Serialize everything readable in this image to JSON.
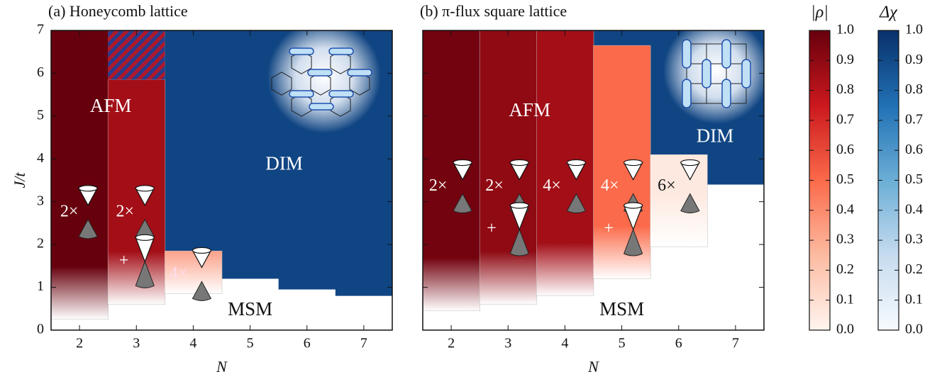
{
  "chart_data": [
    {
      "type": "phase",
      "title": "(a) Honeycomb lattice",
      "xlabel": "N",
      "ylabel": "J/t",
      "xlim": [
        1.5,
        7.5
      ],
      "ylim": [
        0,
        7
      ],
      "xticks": [
        2,
        3,
        4,
        5,
        6,
        7
      ],
      "yticks": [
        0,
        1,
        2,
        3,
        4,
        5,
        6,
        7
      ],
      "afm": {
        "N": [
          2,
          3,
          4
        ],
        "low": [
          0.25,
          0.6,
          0.85
        ],
        "high": [
          7,
          5.85,
          1.85
        ],
        "rho": [
          1.0,
          0.85,
          0.4
        ]
      },
      "dim": {
        "N": [
          4,
          5,
          6,
          7
        ],
        "low": [
          1.85,
          1.2,
          0.95,
          0.8
        ],
        "high": [
          7,
          7,
          7,
          7
        ],
        "chi": [
          0.92,
          0.92,
          0.92,
          0.92
        ]
      },
      "hatched": {
        "N": [
          3
        ],
        "low": [
          5.85
        ],
        "high": [
          7
        ]
      },
      "labels": [
        "AFM",
        "DIM",
        "MSM"
      ],
      "multiplicities": [
        "2×",
        "2×",
        "+",
        "4×"
      ]
    },
    {
      "type": "phase",
      "title": "(b) π-flux square lattice",
      "xlabel": "N",
      "xlim": [
        1.5,
        7.5
      ],
      "ylim": [
        0,
        7
      ],
      "xticks": [
        2,
        3,
        4,
        5,
        6,
        7
      ],
      "yticks": [
        0,
        1,
        2,
        3,
        4,
        5,
        6,
        7
      ],
      "afm": {
        "N": [
          2,
          3,
          4,
          5,
          6
        ],
        "low": [
          0.45,
          0.6,
          0.8,
          1.2,
          1.95
        ],
        "high": [
          7,
          7,
          7,
          6.65,
          4.1
        ],
        "rho": [
          0.97,
          0.9,
          0.85,
          0.5,
          0.05
        ]
      },
      "dim": {
        "N": [
          5,
          6,
          7
        ],
        "low": [
          6.65,
          4.1,
          3.4
        ],
        "high": [
          7,
          7,
          7
        ],
        "chi": [
          0.92,
          0.92,
          0.92
        ]
      },
      "labels": [
        "AFM",
        "DIM",
        "MSM"
      ],
      "multiplicities": [
        "2×",
        "2×",
        "4×",
        "4×",
        "6×",
        "+",
        "+"
      ]
    },
    {
      "type": "colorbar",
      "label": "|ρ|",
      "lim": [
        0,
        1
      ],
      "colors": [
        "#fff5f0",
        "#fcbba1",
        "#fb6a4a",
        "#cb181d",
        "#67000d"
      ],
      "ticks": [
        {
          "value": 0,
          "label": "0.0"
        },
        {
          "value": 0.1,
          "label": "0.1"
        },
        {
          "value": 0.2,
          "label": "0.2"
        },
        {
          "value": 0.3,
          "label": "0.3"
        },
        {
          "value": 0.4,
          "label": "0.4"
        },
        {
          "value": 0.5,
          "label": "0.5"
        },
        {
          "value": 0.6,
          "label": "0.6"
        },
        {
          "value": 0.7,
          "label": "0.7"
        },
        {
          "value": 0.8,
          "label": "0.8"
        },
        {
          "value": 0.9,
          "label": "0.9"
        },
        {
          "value": 1,
          "label": "1.0"
        }
      ]
    },
    {
      "type": "colorbar",
      "label": "Δχ",
      "lim": [
        0,
        1
      ],
      "colors": [
        "#f7fbff",
        "#c6dbef",
        "#6baed6",
        "#2171b5",
        "#08306b"
      ],
      "ticks": [
        {
          "value": 0,
          "label": "0.0"
        },
        {
          "value": 0.1,
          "label": "0.1"
        },
        {
          "value": 0.2,
          "label": "0.2"
        },
        {
          "value": 0.3,
          "label": "0.3"
        },
        {
          "value": 0.4,
          "label": "0.4"
        },
        {
          "value": 0.5,
          "label": "0.5"
        },
        {
          "value": 0.6,
          "label": "0.6"
        },
        {
          "value": 0.7,
          "label": "0.7"
        },
        {
          "value": 0.8,
          "label": "0.8"
        },
        {
          "value": 0.9,
          "label": "0.9"
        },
        {
          "value": 1,
          "label": "1.0"
        }
      ]
    }
  ]
}
